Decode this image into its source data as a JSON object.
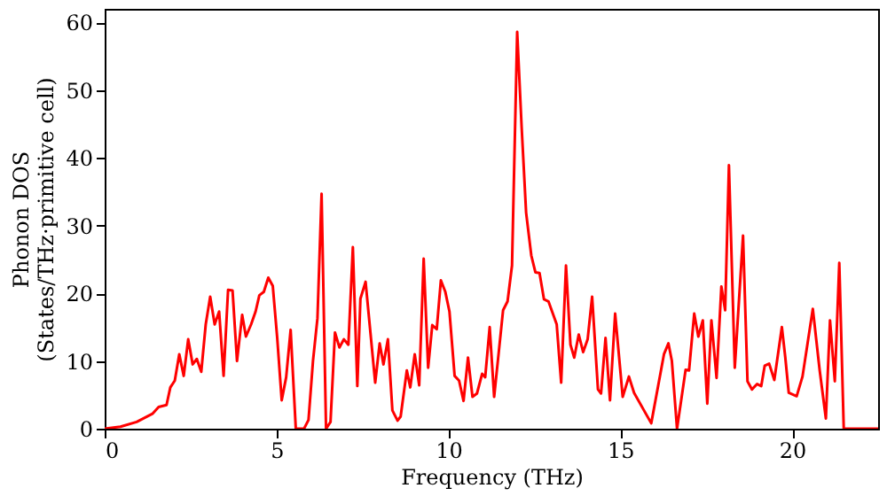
{
  "chart_data": {
    "type": "line",
    "xlabel": "Frequency (THz)",
    "ylabel": "Phonon DOS\n(States/THz·primitive cell)",
    "xlim": [
      0,
      22.5
    ],
    "ylim": [
      0,
      62
    ],
    "xticks": [
      0,
      5,
      10,
      15,
      20
    ],
    "yticks": [
      0,
      10,
      20,
      30,
      40,
      50,
      60
    ],
    "grid": false,
    "legend": false,
    "marker": "none",
    "line_style": "solid",
    "series": [
      {
        "color": "#ff0000",
        "x": [
          0,
          0.46,
          0.93,
          1.39,
          1.57,
          1.8,
          1.91,
          2.04,
          2.17,
          2.3,
          2.43,
          2.56,
          2.68,
          2.81,
          2.94,
          3.07,
          3.2,
          3.33,
          3.46,
          3.59,
          3.72,
          3.85,
          4.0,
          4.11,
          4.26,
          4.39,
          4.5,
          4.63,
          4.76,
          4.89,
          5.02,
          5.15,
          5.28,
          5.41,
          5.56,
          5.8,
          5.93,
          6.06,
          6.19,
          6.31,
          6.44,
          6.57,
          6.7,
          6.83,
          6.96,
          7.09,
          7.22,
          7.35,
          7.44,
          7.59,
          7.87,
          8.0,
          8.11,
          8.24,
          8.37,
          8.52,
          8.61,
          8.79,
          8.89,
          9.02,
          9.15,
          9.28,
          9.41,
          9.53,
          9.66,
          9.78,
          9.91,
          10.03,
          10.18,
          10.31,
          10.44,
          10.57,
          10.7,
          10.83,
          10.98,
          11.07,
          11.2,
          11.33,
          11.59,
          11.72,
          11.85,
          12.0,
          12.13,
          12.26,
          12.41,
          12.53,
          12.65,
          12.78,
          12.91,
          13.15,
          13.28,
          13.42,
          13.55,
          13.66,
          13.79,
          13.92,
          14.05,
          14.18,
          14.35,
          14.44,
          14.57,
          14.7,
          14.85,
          15.07,
          15.25,
          15.4,
          15.9,
          16.27,
          16.4,
          16.5,
          16.65,
          16.9,
          17.0,
          17.15,
          17.27,
          17.4,
          17.53,
          17.65,
          17.8,
          17.94,
          18.05,
          18.16,
          18.33,
          18.57,
          18.7,
          18.83,
          18.98,
          19.1,
          19.2,
          19.33,
          19.48,
          19.7,
          19.8,
          19.9,
          20.13,
          20.3,
          20.6,
          20.8,
          20.98,
          21.1,
          21.24,
          21.37,
          21.5,
          22.5
        ],
        "values": [
          0,
          0.3,
          1,
          2.2,
          3.2,
          3.5,
          6.1,
          7.1,
          11,
          7.8,
          13.2,
          9.5,
          10.3,
          8.4,
          15.4,
          19.5,
          15.4,
          17.3,
          7.8,
          20.5,
          20.4,
          10,
          16.8,
          13.6,
          15.4,
          17.3,
          19.7,
          20.2,
          22.3,
          21.1,
          13.4,
          4.2,
          7.6,
          14.6,
          0,
          0,
          1.3,
          10,
          16.3,
          34.7,
          0,
          1,
          14.2,
          12,
          13.2,
          12.4,
          26.8,
          6.3,
          19.2,
          21.7,
          6.8,
          12.6,
          9.5,
          13.2,
          2.7,
          1.2,
          1.8,
          8.6,
          6.1,
          11,
          6.4,
          25.1,
          9,
          15.3,
          14.7,
          21.9,
          20.2,
          17.3,
          7.8,
          7.1,
          4.1,
          10.5,
          4.7,
          5.2,
          8.1,
          7.6,
          15,
          4.7,
          17.5,
          18.8,
          24.1,
          58.6,
          44.5,
          31.9,
          25.6,
          23.1,
          23,
          19.1,
          18.8,
          15.4,
          6.8,
          24.1,
          12.4,
          10.5,
          13.9,
          11.3,
          13.2,
          19.5,
          5.8,
          5.2,
          13.4,
          4.2,
          17,
          4.7,
          7.7,
          5.3,
          0.8,
          11,
          12.6,
          10,
          0,
          8.7,
          8.6,
          17,
          13.6,
          16,
          3.7,
          16,
          7.5,
          21,
          17.5,
          38.9,
          9,
          28.5,
          7,
          5.8,
          6.6,
          6.3,
          9.3,
          9.6,
          7.2,
          15,
          10.5,
          5.3,
          4.8,
          7.7,
          17.7,
          8.6,
          1.5,
          16,
          7,
          24.5,
          0,
          0
        ]
      }
    ]
  }
}
